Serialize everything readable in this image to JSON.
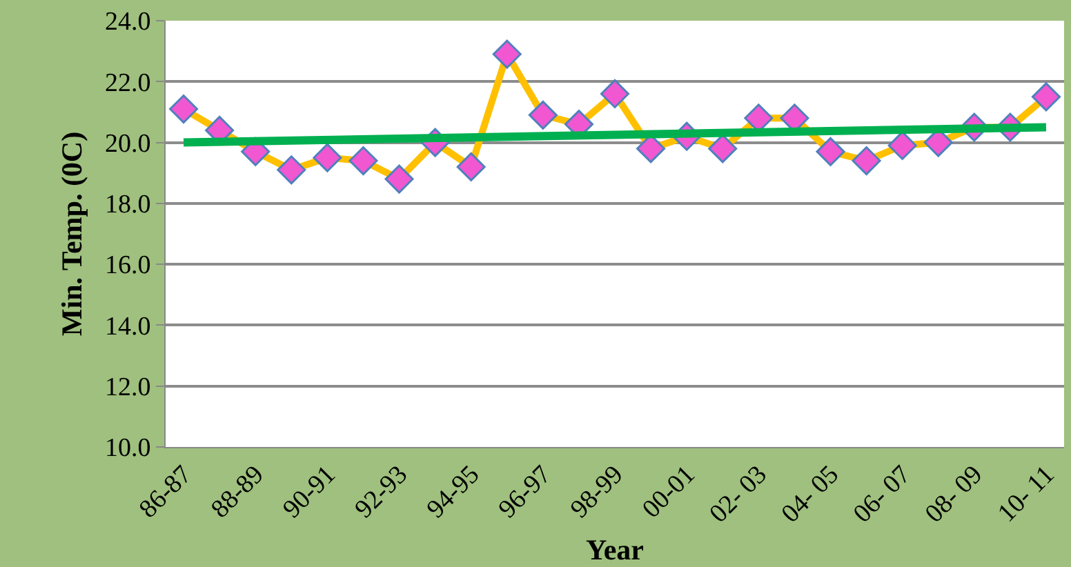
{
  "chart_data": {
    "type": "line",
    "xlabel": "Year",
    "ylabel": "Min. Temp. (0C)",
    "categories": [
      "86-87",
      null,
      "88-89",
      null,
      "90-91",
      null,
      "92-93",
      null,
      "94-95",
      null,
      "96-97",
      null,
      "98-99",
      null,
      "00-01",
      null,
      "02- 03",
      null,
      "04- 05",
      null,
      "06- 07",
      null,
      "08- 09",
      null,
      "10- 11"
    ],
    "series": [
      {
        "color": "#ffc000",
        "marker": "diamond",
        "values": [
          21.1,
          20.4,
          19.7,
          19.1,
          19.5,
          19.4,
          18.8,
          20.0,
          19.2,
          22.9,
          20.9,
          20.6,
          21.6,
          19.8,
          20.2,
          19.8,
          20.8,
          20.8,
          19.7,
          19.4,
          19.9,
          20.0,
          20.5,
          20.5,
          21.5
        ]
      },
      {
        "color": "#00b050",
        "marker": "none",
        "values": [
          20.0,
          null,
          null,
          null,
          null,
          null,
          null,
          null,
          null,
          null,
          null,
          null,
          null,
          null,
          null,
          null,
          null,
          null,
          null,
          null,
          null,
          null,
          null,
          null,
          20.5
        ]
      }
    ],
    "ylim": [
      10,
      24
    ],
    "yticks": [
      {
        "value": 10,
        "label": "10.0"
      },
      {
        "value": 12,
        "label": "12.0"
      },
      {
        "value": 14,
        "label": "14.0"
      },
      {
        "value": 16,
        "label": "16.0"
      },
      {
        "value": 18,
        "label": "18.0"
      },
      {
        "value": 20,
        "label": "20.0"
      },
      {
        "value": 22,
        "label": "22.0"
      },
      {
        "value": 24,
        "label": "24.0"
      }
    ],
    "grid": "y"
  }
}
